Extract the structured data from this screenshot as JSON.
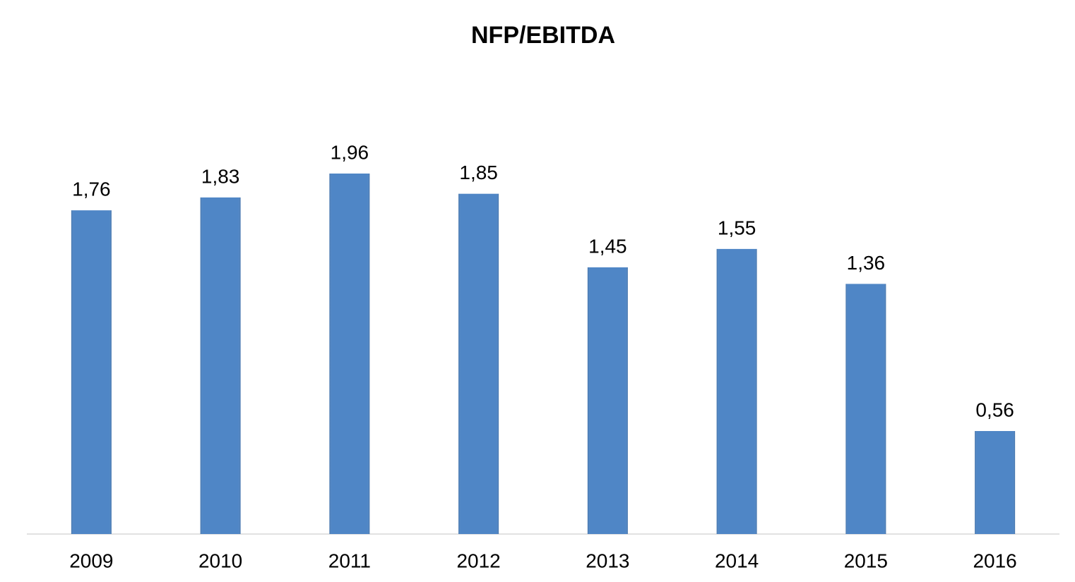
{
  "chart_data": {
    "type": "bar",
    "title": "NFP/EBITDA",
    "categories": [
      "2009",
      "2010",
      "2011",
      "2012",
      "2013",
      "2014",
      "2015",
      "2016"
    ],
    "values": [
      1.76,
      1.83,
      1.96,
      1.85,
      1.45,
      1.55,
      1.36,
      0.56
    ],
    "value_labels": [
      "1,76",
      "1,83",
      "1,96",
      "1,85",
      "1,45",
      "1,55",
      "1,36",
      "0,56"
    ],
    "color": "#4f86c6"
  }
}
